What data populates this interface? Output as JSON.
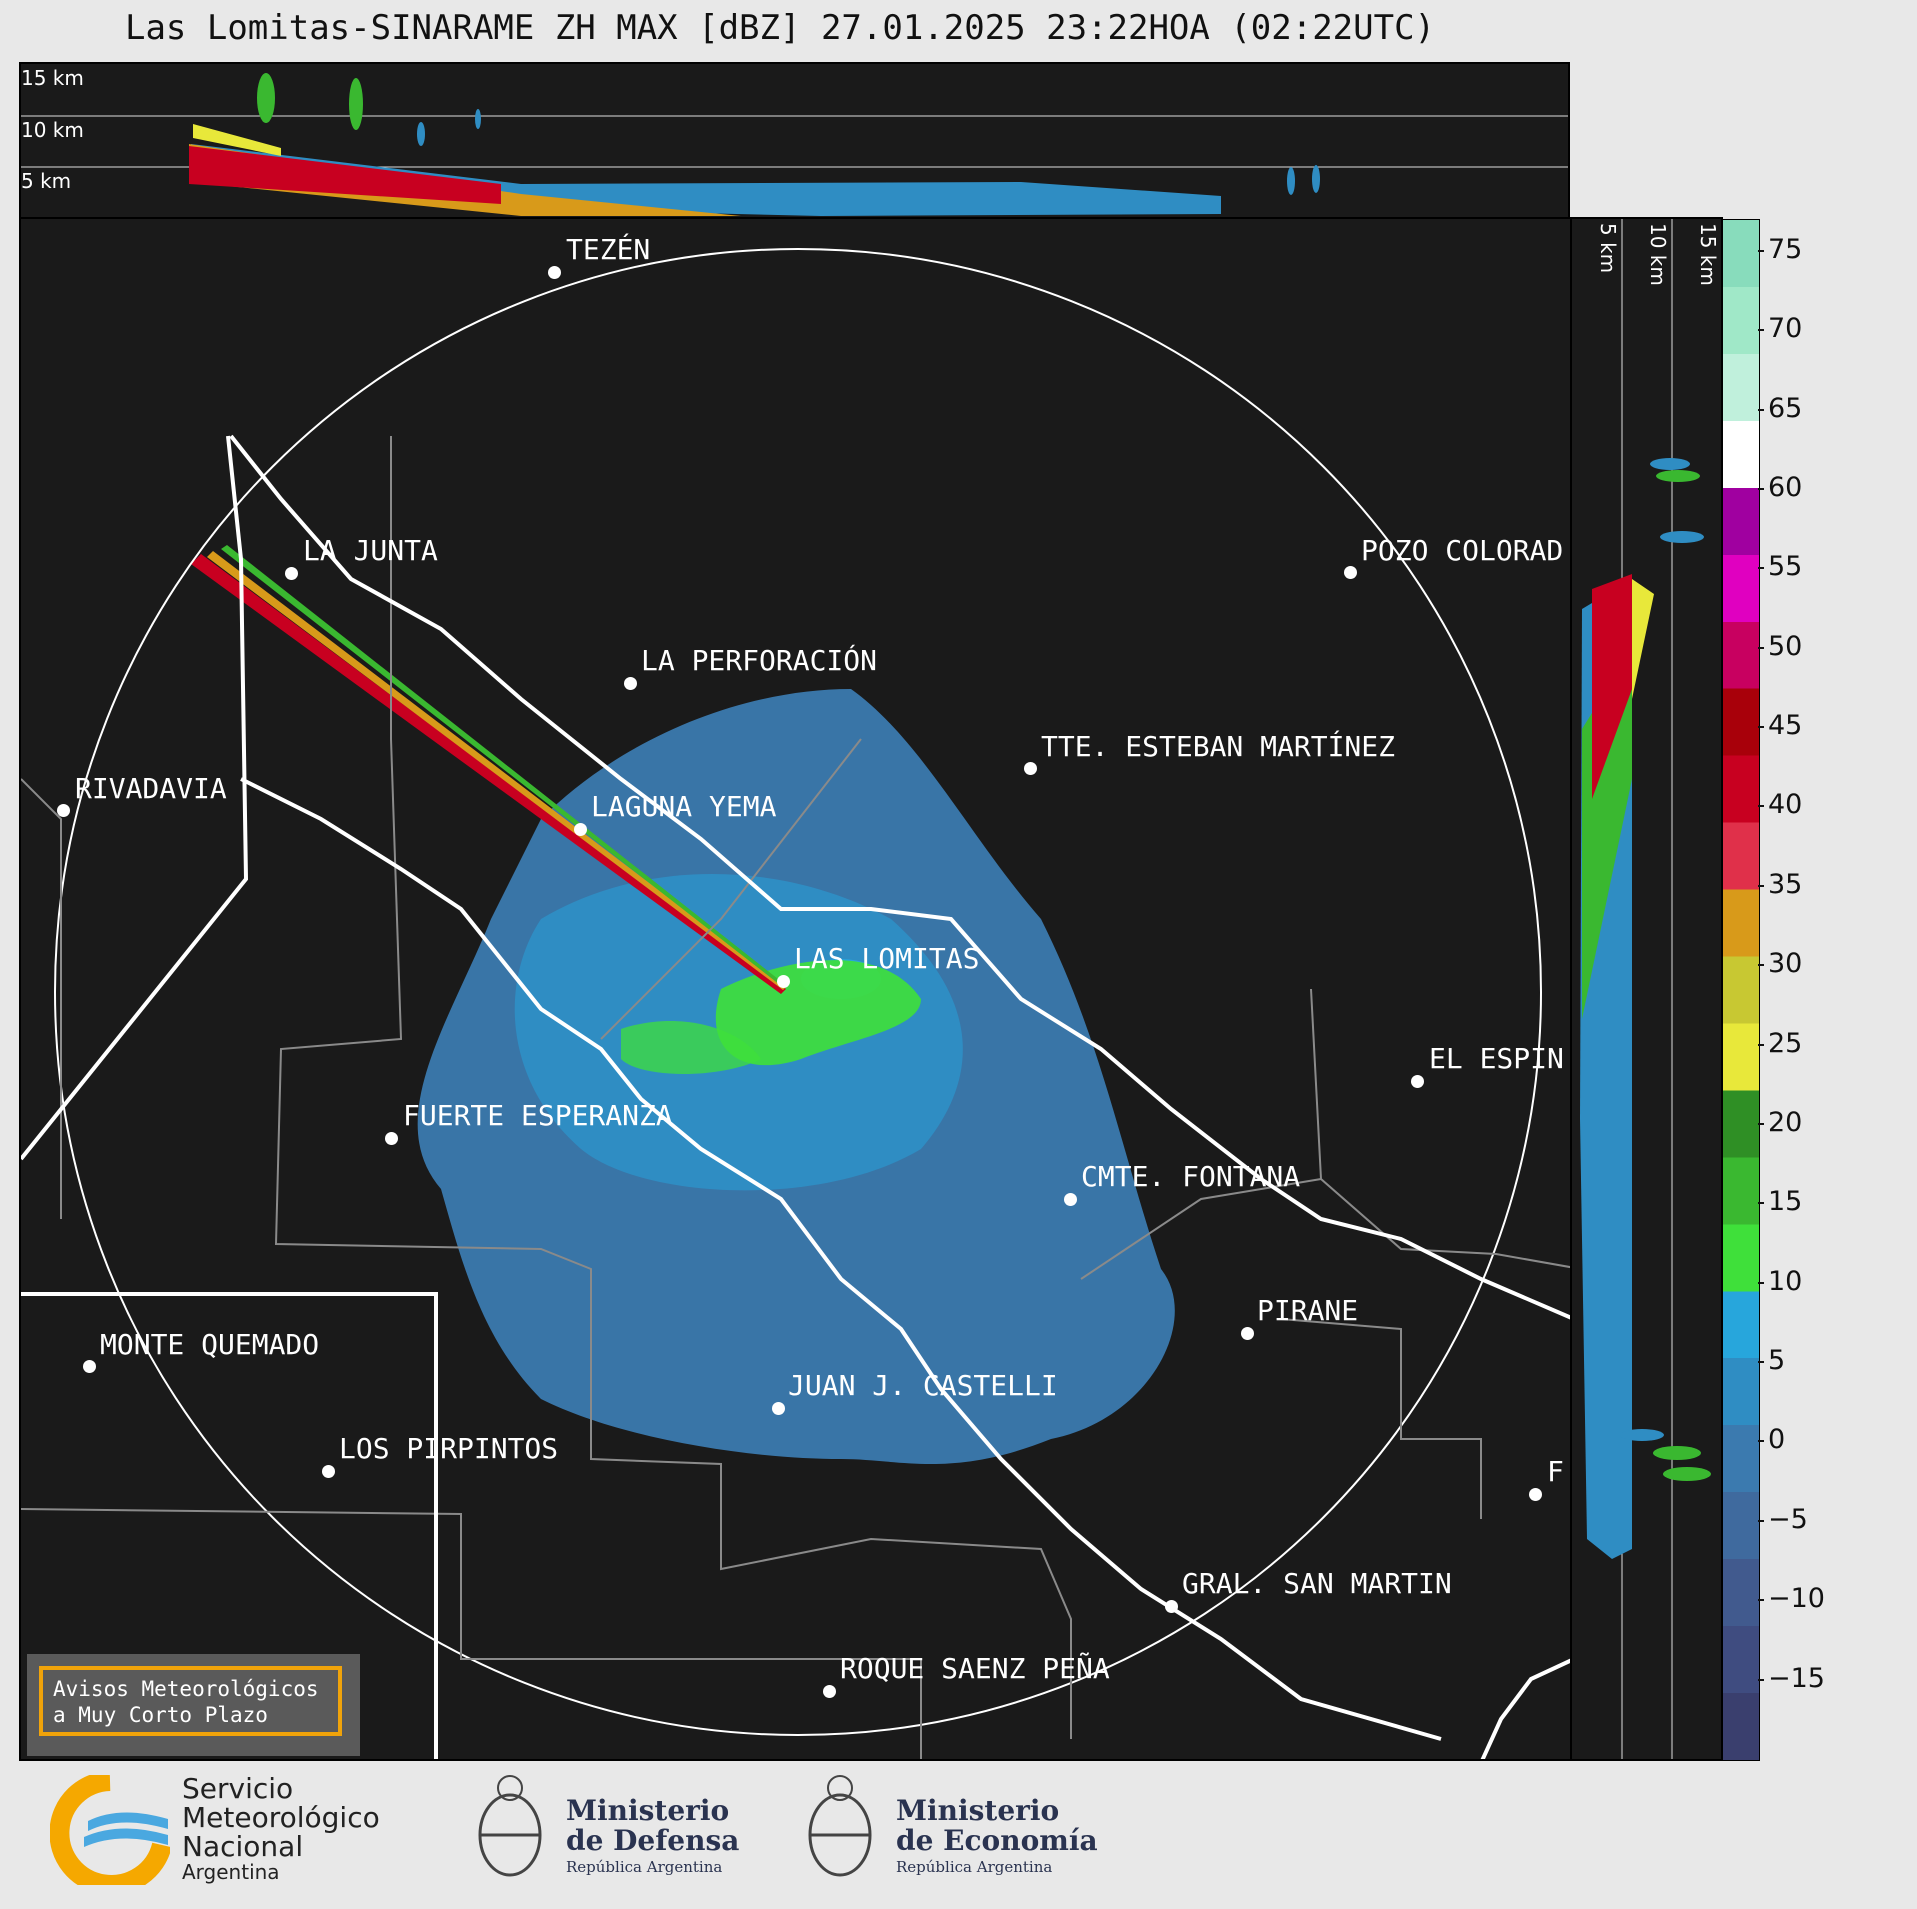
{
  "title": "Las Lomitas-SINARAME ZH MAX [dBZ] 27.01.2025 23:22HOA (02:22UTC)",
  "top_panel": {
    "heights": [
      "15 km",
      "10 km",
      "5 km"
    ]
  },
  "side_panel": {
    "heights": [
      "5 km",
      "10 km",
      "15 km"
    ]
  },
  "cities": [
    {
      "name": "TEZÉN"
    },
    {
      "name": "LA JUNTA"
    },
    {
      "name": "POZO COLORAD"
    },
    {
      "name": "LA PERFORACIÓN"
    },
    {
      "name": "TTE. ESTEBAN MARTÍNEZ"
    },
    {
      "name": "RIVADAVIA"
    },
    {
      "name": "LAGUNA YEMA"
    },
    {
      "name": "LAS LOMITAS"
    },
    {
      "name": "EL ESPIN"
    },
    {
      "name": "FUERTE ESPERANZA"
    },
    {
      "name": "CMTE. FONTANA"
    },
    {
      "name": "PIRANE"
    },
    {
      "name": "MONTE QUEMADO"
    },
    {
      "name": "JUAN J. CASTELLI"
    },
    {
      "name": "LOS PIRPINTOS"
    },
    {
      "name": "GRAL. SAN MARTIN"
    },
    {
      "name": "ROQUE SAENZ PEÑA"
    },
    {
      "name": "F"
    }
  ],
  "colorbar": {
    "ticks": [
      "75",
      "70",
      "65",
      "60",
      "55",
      "50",
      "45",
      "40",
      "35",
      "30",
      "25",
      "20",
      "15",
      "10",
      "5",
      "0",
      "−5",
      "−10",
      "−15"
    ],
    "range_dbz": [
      -20,
      77
    ],
    "colors": [
      "#3a3f6e",
      "#3f4c80",
      "#415a8e",
      "#3f6a9e",
      "#3b7aaf",
      "#2f8dc3",
      "#27a6dc",
      "#3fe03a",
      "#3ab830",
      "#2f8f25",
      "#e8e83a",
      "#c8c832",
      "#d89a1a",
      "#e0304a",
      "#c80020",
      "#a8000a",
      "#c80060",
      "#e000c0",
      "#a000a0",
      "#ffffff",
      "#c0f0dc",
      "#a0e8c8",
      "#88dcbc"
    ]
  },
  "legend": {
    "line1": "Avisos Meteorológicos",
    "line2": "a Muy Corto Plazo"
  },
  "logos": {
    "smn": {
      "line1": "Servicio",
      "line2": "Meteorológico",
      "line3": "Nacional",
      "line4": "Argentina"
    },
    "defensa": {
      "line1": "Ministerio",
      "line2": "de Defensa",
      "line3": "República Argentina"
    },
    "economia": {
      "line1": "Ministerio",
      "line2": "de Economía",
      "line3": "República Argentina"
    }
  }
}
